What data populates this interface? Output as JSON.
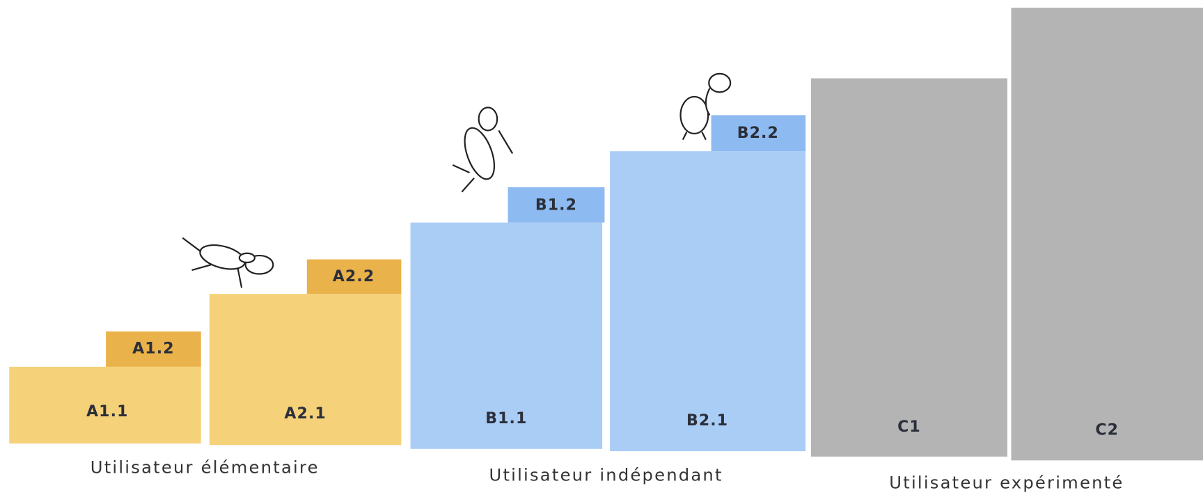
{
  "groups": [
    {
      "label": "Utilisateur élémentaire",
      "levels": [
        "A1.1",
        "A1.2",
        "A2.1",
        "A2.2"
      ]
    },
    {
      "label": "Utilisateur indépendant",
      "levels": [
        "B1.1",
        "B1.2",
        "B2.1",
        "B2.2"
      ]
    },
    {
      "label": "Utilisateur expérimenté",
      "levels": [
        "C1",
        "C2"
      ]
    }
  ]
}
